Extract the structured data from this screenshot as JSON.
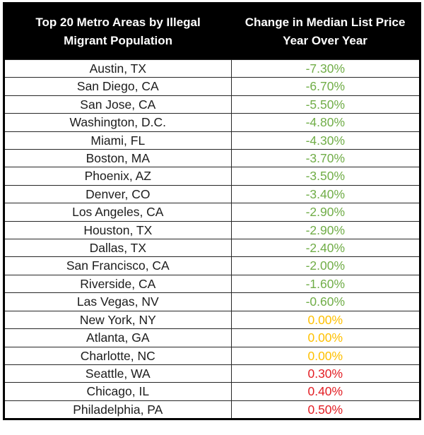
{
  "table": {
    "header": {
      "col1_line1": "Top 20 Metro Areas by Illegal",
      "col1_line2": "Migrant Population",
      "col2_line1": "Change in Median List Price",
      "col2_line2": "Year Over Year"
    },
    "rows": [
      {
        "metro": "Austin, TX",
        "change": "-7.30%",
        "color": "#70AD47"
      },
      {
        "metro": "San Diego, CA",
        "change": "-6.70%",
        "color": "#70AD47"
      },
      {
        "metro": "San Jose, CA",
        "change": "-5.50%",
        "color": "#70AD47"
      },
      {
        "metro": "Washington, D.C.",
        "change": "-4.80%",
        "color": "#70AD47"
      },
      {
        "metro": "Miami, FL",
        "change": "-4.30%",
        "color": "#70AD47"
      },
      {
        "metro": "Boston, MA",
        "change": "-3.70%",
        "color": "#70AD47"
      },
      {
        "metro": "Phoenix, AZ",
        "change": "-3.50%",
        "color": "#70AD47"
      },
      {
        "metro": "Denver, CO",
        "change": "-3.40%",
        "color": "#70AD47"
      },
      {
        "metro": "Los Angeles, CA",
        "change": "-2.90%",
        "color": "#70AD47"
      },
      {
        "metro": "Houston, TX",
        "change": "-2.90%",
        "color": "#70AD47"
      },
      {
        "metro": "Dallas, TX",
        "change": "-2.40%",
        "color": "#70AD47"
      },
      {
        "metro": "San Francisco, CA",
        "change": "-2.00%",
        "color": "#70AD47"
      },
      {
        "metro": "Riverside, CA",
        "change": "-1.60%",
        "color": "#70AD47"
      },
      {
        "metro": "Las Vegas, NV",
        "change": "-0.60%",
        "color": "#70AD47"
      },
      {
        "metro": "New York, NY",
        "change": "0.00%",
        "color": "#FFC000"
      },
      {
        "metro": "Atlanta, GA",
        "change": "0.00%",
        "color": "#FFC000"
      },
      {
        "metro": "Charlotte, NC",
        "change": "0.00%",
        "color": "#FFC000"
      },
      {
        "metro": "Seattle, WA",
        "change": "0.30%",
        "color": "#E31E24"
      },
      {
        "metro": "Chicago, IL",
        "change": "0.40%",
        "color": "#E31E24"
      },
      {
        "metro": "Philadelphia, PA",
        "change": "0.50%",
        "color": "#E31E24"
      }
    ]
  },
  "colors": {
    "header_bg": "#000000",
    "header_text": "#FFFFFF",
    "body_text": "#1C1C1C",
    "border": "#262626",
    "negative_change": "#70AD47",
    "zero_change": "#FFC000",
    "positive_change": "#E31E24"
  },
  "chart_data": {
    "type": "table",
    "title": "Top 20 Metro Areas by Illegal Migrant Population — Change in Median List Price Year Over Year",
    "columns": [
      "Top 20 Metro Areas by Illegal Migrant Population",
      "Change in Median List Price Year Over Year"
    ],
    "categories": [
      "Austin, TX",
      "San Diego, CA",
      "San Jose, CA",
      "Washington, D.C.",
      "Miami, FL",
      "Boston, MA",
      "Phoenix, AZ",
      "Denver, CO",
      "Los Angeles, CA",
      "Houston, TX",
      "Dallas, TX",
      "San Francisco, CA",
      "Riverside, CA",
      "Las Vegas, NV",
      "New York, NY",
      "Atlanta, GA",
      "Charlotte, NC",
      "Seattle, WA",
      "Chicago, IL",
      "Philadelphia, PA"
    ],
    "values": [
      -7.3,
      -6.7,
      -5.5,
      -4.8,
      -4.3,
      -3.7,
      -3.5,
      -3.4,
      -2.9,
      -2.9,
      -2.4,
      -2.0,
      -1.6,
      -0.6,
      0.0,
      0.0,
      0.0,
      0.3,
      0.4,
      0.5
    ],
    "value_unit": "%",
    "color_coding": "green = negative change, gold = zero change, red = positive change"
  }
}
